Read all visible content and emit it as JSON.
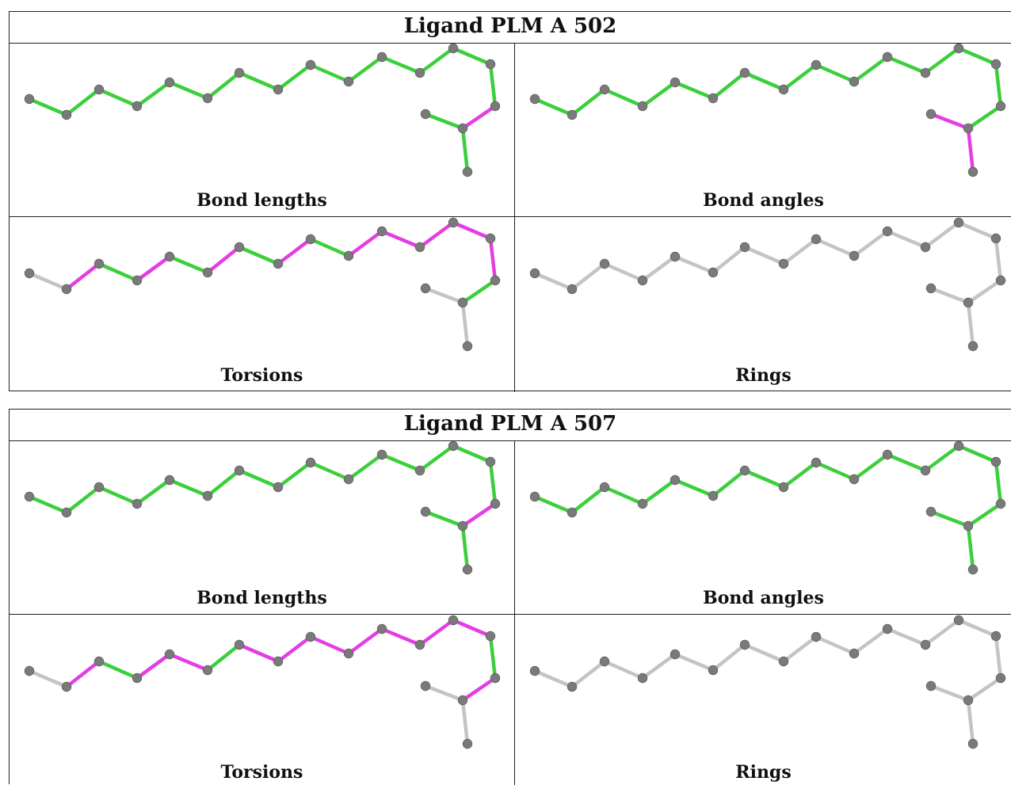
{
  "colors": {
    "ok": "#3ccf3c",
    "outlier": "#e33ee3",
    "neutral": "#c4c4c4",
    "atom": "#7a7a7a"
  },
  "ligands": [
    {
      "title": "Ligand PLM A 502",
      "panels": {
        "bond_lengths": {
          "caption": "Bond lengths",
          "bonds": [
            "ok",
            "ok",
            "ok",
            "ok",
            "ok",
            "ok",
            "ok",
            "ok",
            "ok",
            "ok",
            "ok",
            "ok",
            "ok",
            "ok",
            "outlier",
            "ok",
            "ok"
          ]
        },
        "bond_angles": {
          "caption": "Bond angles",
          "bonds": [
            "ok",
            "ok",
            "ok",
            "ok",
            "ok",
            "ok",
            "ok",
            "ok",
            "ok",
            "ok",
            "ok",
            "ok",
            "ok",
            "ok",
            "ok",
            "outlier",
            "outlier"
          ]
        },
        "torsions": {
          "caption": "Torsions",
          "bonds": [
            "neutral",
            "outlier",
            "ok",
            "outlier",
            "ok",
            "outlier",
            "ok",
            "outlier",
            "ok",
            "outlier",
            "outlier",
            "outlier",
            "outlier",
            "outlier",
            "ok",
            "neutral",
            "neutral"
          ]
        },
        "rings": {
          "caption": "Rings",
          "bonds": [
            "neutral",
            "neutral",
            "neutral",
            "neutral",
            "neutral",
            "neutral",
            "neutral",
            "neutral",
            "neutral",
            "neutral",
            "neutral",
            "neutral",
            "neutral",
            "neutral",
            "neutral",
            "neutral",
            "neutral"
          ]
        }
      }
    },
    {
      "title": "Ligand PLM A 507",
      "panels": {
        "bond_lengths": {
          "caption": "Bond lengths",
          "bonds": [
            "ok",
            "ok",
            "ok",
            "ok",
            "ok",
            "ok",
            "ok",
            "ok",
            "ok",
            "ok",
            "ok",
            "ok",
            "ok",
            "ok",
            "outlier",
            "ok",
            "ok"
          ]
        },
        "bond_angles": {
          "caption": "Bond angles",
          "bonds": [
            "ok",
            "ok",
            "ok",
            "ok",
            "ok",
            "ok",
            "ok",
            "ok",
            "ok",
            "ok",
            "ok",
            "ok",
            "ok",
            "ok",
            "ok",
            "ok",
            "ok"
          ]
        },
        "torsions": {
          "caption": "Torsions",
          "bonds": [
            "neutral",
            "outlier",
            "ok",
            "outlier",
            "outlier",
            "ok",
            "outlier",
            "outlier",
            "outlier",
            "outlier",
            "outlier",
            "outlier",
            "outlier",
            "ok",
            "outlier",
            "neutral",
            "neutral"
          ]
        },
        "rings": {
          "caption": "Rings",
          "bonds": [
            "neutral",
            "neutral",
            "neutral",
            "neutral",
            "neutral",
            "neutral",
            "neutral",
            "neutral",
            "neutral",
            "neutral",
            "neutral",
            "neutral",
            "neutral",
            "neutral",
            "neutral",
            "neutral",
            "neutral"
          ]
        }
      }
    }
  ]
}
